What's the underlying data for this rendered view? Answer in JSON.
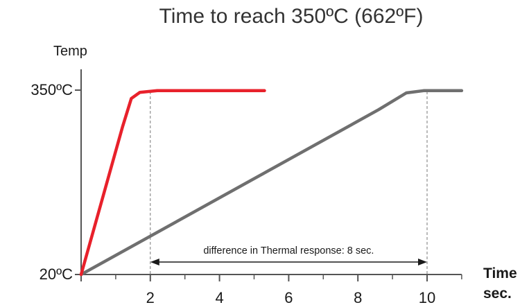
{
  "chart_data": {
    "type": "line",
    "title": "Time to reach 350ºC (662ºF)",
    "ylabel": "Temp",
    "xlabel_line1": "Time",
    "xlabel_line2": "sec.",
    "xlim": [
      0,
      11
    ],
    "ylim": [
      20,
      350
    ],
    "x_ticks": [
      2,
      4,
      6,
      8,
      10
    ],
    "y_ticks": [
      {
        "value": 20,
        "label": "20ºC"
      },
      {
        "value": 350,
        "label": "350ºC"
      }
    ],
    "grid": false,
    "series": [
      {
        "color": "#e8212b",
        "points": [
          [
            0,
            20
          ],
          [
            1.2,
            285
          ],
          [
            1.45,
            335
          ],
          [
            1.7,
            346
          ],
          [
            2.2,
            349
          ],
          [
            5.3,
            349
          ]
        ]
      },
      {
        "color": "#6f6f6f",
        "points": [
          [
            0,
            20
          ],
          [
            8.6,
            315
          ],
          [
            9.4,
            345
          ],
          [
            9.9,
            349
          ],
          [
            11,
            349
          ]
        ]
      }
    ],
    "reference_lines": [
      2,
      10
    ],
    "annotation": {
      "text": "difference in Thermal response: 8 sec.",
      "from": 2,
      "to": 10
    }
  }
}
